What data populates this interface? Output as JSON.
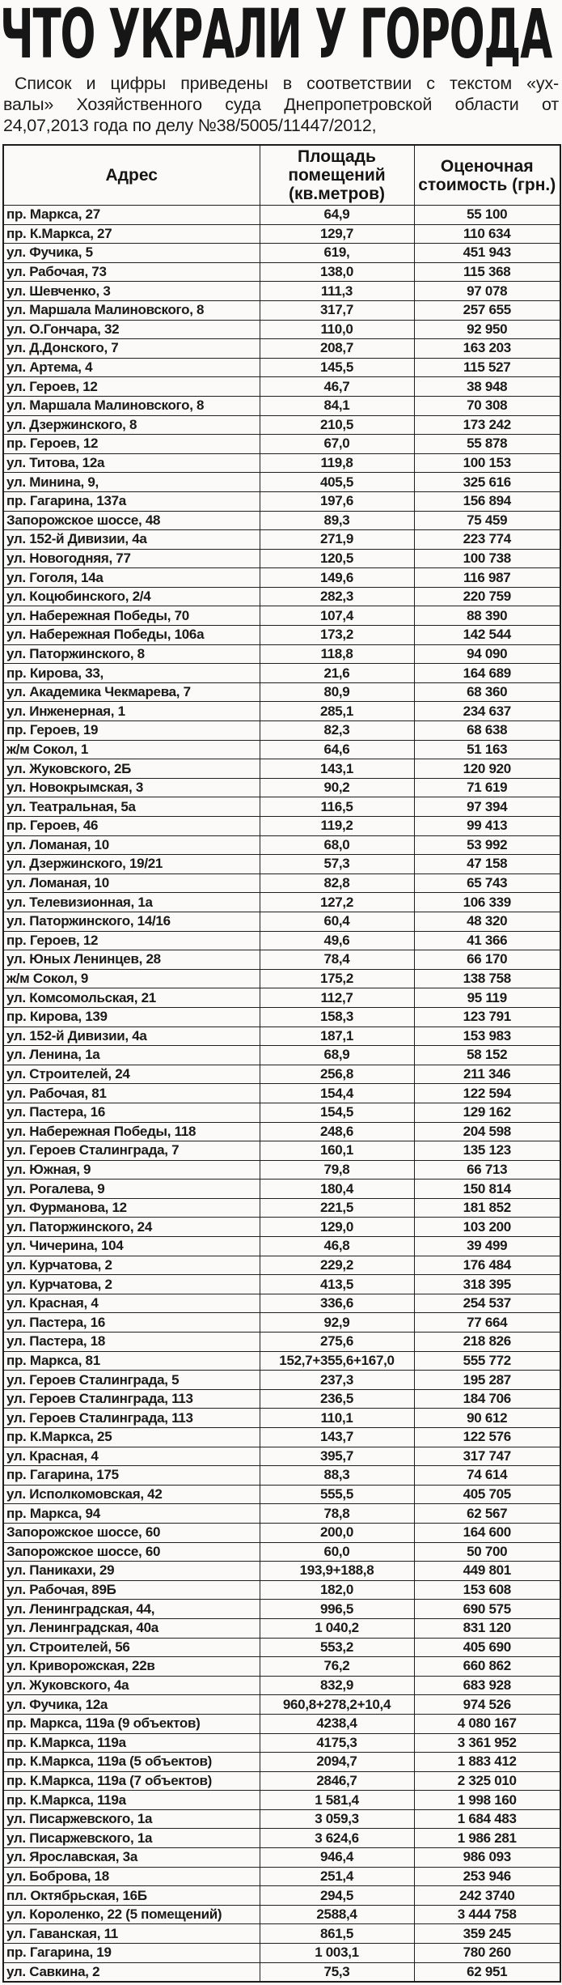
{
  "title": "ЧТО УКРАЛИ У ГОРОДА",
  "subtitle": {
    "lines": [
      "Список и цифры приведены в соответствии с текстом «ух-",
      "валы» Хозяйственного суда Днепропетровской области от",
      "24,07,2013 года по делу №38/5005/11447/2012,"
    ]
  },
  "table": {
    "columns": {
      "address": "Адрес",
      "area": "Площадь помещений (кв.метров)",
      "value": "Оценочная стоимость (грн.)"
    },
    "rows": [
      [
        "пр. Маркса, 27",
        "64,9",
        "55 100"
      ],
      [
        "пр. К.Маркса, 27",
        "129,7",
        "110 634"
      ],
      [
        "ул. Фучика, 5",
        "619,",
        "451 943"
      ],
      [
        "ул. Рабочая, 73",
        "138,0",
        "115 368"
      ],
      [
        "ул. Шевченко, 3",
        "111,3",
        "97 078"
      ],
      [
        "ул. Маршала Малиновского, 8",
        "317,7",
        "257 655"
      ],
      [
        "ул. О.Гончара, 32",
        "110,0",
        "92 950"
      ],
      [
        "ул. Д.Донского, 7",
        "208,7",
        "163 203"
      ],
      [
        "ул. Артема, 4",
        "145,5",
        "115 527"
      ],
      [
        "ул. Героев, 12",
        "46,7",
        "38 948"
      ],
      [
        "ул. Маршала Малиновского, 8",
        "84,1",
        "70 308"
      ],
      [
        "ул. Дзержинского, 8",
        "210,5",
        "173 242"
      ],
      [
        "пр. Героев, 12",
        "67,0",
        "55 878"
      ],
      [
        "ул. Титова, 12а",
        "119,8",
        "100 153"
      ],
      [
        "ул. Минина, 9,",
        "405,5",
        "325 616"
      ],
      [
        "пр. Гагарина, 137а",
        "197,6",
        "156 894"
      ],
      [
        "Запорожское шоссе, 48",
        "89,3",
        "75 459"
      ],
      [
        "ул. 152-й Дивизии, 4а",
        "271,9",
        "223 774"
      ],
      [
        "ул. Новогодняя, 77",
        "120,5",
        "100 738"
      ],
      [
        "ул. Гоголя, 14а",
        "149,6",
        "116 987"
      ],
      [
        "ул. Коцюбинского, 2/4",
        "282,3",
        "220 759"
      ],
      [
        "ул. Набережная Победы, 70",
        "107,4",
        "88 390"
      ],
      [
        "ул. Набережная Победы, 106а",
        "173,2",
        "142 544"
      ],
      [
        "ул. Паторжинского, 8",
        "118,8",
        "94 090"
      ],
      [
        "пр. Кирова, 33,",
        "21,6",
        "164 689"
      ],
      [
        "ул. Академика Чекмарева, 7",
        "80,9",
        "68 360"
      ],
      [
        "ул. Инженерная, 1",
        "285,1",
        "234 637"
      ],
      [
        "пр. Героев, 19",
        "82,3",
        "68 638"
      ],
      [
        "ж/м Сокол, 1",
        "64,6",
        "51 163"
      ],
      [
        "ул. Жуковского, 2Б",
        "143,1",
        "120 920"
      ],
      [
        "ул. Новокрымская, 3",
        "90,2",
        "71 619"
      ],
      [
        "ул. Театральная, 5а",
        "116,5",
        "97 394"
      ],
      [
        "пр. Героев, 46",
        "119,2",
        "99 413"
      ],
      [
        "ул. Ломаная, 10",
        "68,0",
        "53 992"
      ],
      [
        "ул. Дзержинского, 19/21",
        "57,3",
        "47 158"
      ],
      [
        "ул. Ломаная, 10",
        "82,8",
        "65 743"
      ],
      [
        "ул. Телевизионная, 1а",
        "127,2",
        "106 339"
      ],
      [
        "ул. Паторжинского, 14/16",
        "60,4",
        "48 320"
      ],
      [
        "пр. Героев, 12",
        "49,6",
        "41 366"
      ],
      [
        "ул. Юных Ленинцев, 28",
        "78,4",
        "66 170"
      ],
      [
        "ж/м Сокол, 9",
        "175,2",
        "138 758"
      ],
      [
        "ул. Комсомольская, 21",
        "112,7",
        "95 119"
      ],
      [
        "пр. Кирова, 139",
        "158,3",
        "123 791"
      ],
      [
        "ул. 152-й Дивизии, 4а",
        "187,1",
        "153 983"
      ],
      [
        "ул. Ленина, 1а",
        "68,9",
        "58 152"
      ],
      [
        "ул. Строителей, 24",
        "256,8",
        "211 346"
      ],
      [
        "ул. Рабочая, 81",
        "154,4",
        "122 594"
      ],
      [
        "ул. Пастера, 16",
        "154,5",
        "129 162"
      ],
      [
        "ул. Набережная Победы, 118",
        "248,6",
        "204 598"
      ],
      [
        "ул. Героев Сталинграда, 7",
        "160,1",
        "135 123"
      ],
      [
        "ул. Южная, 9",
        "79,8",
        "66 713"
      ],
      [
        "ул. Рогалева, 9",
        "180,4",
        "150 814"
      ],
      [
        "ул. Фурманова, 12",
        "221,5",
        "181 852"
      ],
      [
        "ул. Паторжинского, 24",
        "129,0",
        "103 200"
      ],
      [
        "ул. Чичерина, 104",
        "46,8",
        "39 499"
      ],
      [
        "ул. Курчатова, 2",
        "229,2",
        "176 484"
      ],
      [
        "ул. Курчатова, 2",
        "413,5",
        "318 395"
      ],
      [
        "ул. Красная, 4",
        "336,6",
        "254 537"
      ],
      [
        "ул. Пастера, 16",
        "92,9",
        "77 664"
      ],
      [
        "ул. Пастера, 18",
        "275,6",
        "218 826"
      ],
      [
        "пр. Маркса, 81",
        "152,7+355,6+167,0",
        "555 772"
      ],
      [
        "ул. Героев Сталинграда, 5",
        "237,3",
        "195 287"
      ],
      [
        "ул. Героев Сталинграда, 113",
        "236,5",
        "184 706"
      ],
      [
        "ул. Героев Сталинграда, 113",
        "110,1",
        "90 612"
      ],
      [
        "пр. К.Маркса, 25",
        "143,7",
        "122 576"
      ],
      [
        "ул. Красная, 4",
        "395,7",
        "317 747"
      ],
      [
        "пр. Гагарина, 175",
        "88,3",
        "74 614"
      ],
      [
        "ул. Исполкомовская, 42",
        "555,5",
        "405 705"
      ],
      [
        "пр. Маркса, 94",
        "78,8",
        "62 567"
      ],
      [
        "Запорожское шоссе, 60",
        "200,0",
        "164 600"
      ],
      [
        "Запорожское шоссе, 60",
        "60,0",
        "50 700"
      ],
      [
        "ул. Паникахи, 29",
        "193,9+188,8",
        "449 801"
      ],
      [
        "ул. Рабочая, 89Б",
        "182,0",
        "153 608"
      ],
      [
        "ул. Ленинградская, 44,",
        "996,5",
        "690 575"
      ],
      [
        "ул. Ленинградская, 40а",
        "1 040,2",
        "831 120"
      ],
      [
        "ул. Строителей, 56",
        "553,2",
        "405 690"
      ],
      [
        "ул. Криворожская, 22в",
        "76,2",
        "660 862"
      ],
      [
        "ул. Жуковского, 4а",
        "832,9",
        "683 928"
      ],
      [
        "ул. Фучика, 12а",
        "960,8+278,2+10,4",
        "974 526"
      ],
      [
        "пр. Маркса, 119а (9 объектов)",
        "4238,4",
        "4 080 167"
      ],
      [
        "пр. К.Маркса, 119а",
        "4175,3",
        "3 361 952"
      ],
      [
        "пр. К.Маркса, 119а (5 объектов)",
        "2094,7",
        "1 883 412"
      ],
      [
        "пр. К.Маркса, 119а (7 объектов)",
        "2846,7",
        "2 325 010"
      ],
      [
        "пр. К.Маркса, 119а",
        "1 581,4",
        "1 998 160"
      ],
      [
        "ул. Писаржевского, 1а",
        "3 059,3",
        "1 684 483"
      ],
      [
        "ул. Писаржевского, 1а",
        "3 624,6",
        "1 986 281"
      ],
      [
        "ул. Ярославская, 3а",
        "946,4",
        "986 093"
      ],
      [
        "ул. Боброва, 18",
        "251,4",
        "253 946"
      ],
      [
        "пл. Октябрьская, 16Б",
        "294,5",
        "242 3740"
      ],
      [
        "ул. Короленко, 22 (5 помещений)",
        "2588,4",
        "3 444 758"
      ],
      [
        "ул. Гаванская, 11",
        "861,5",
        "359 245"
      ],
      [
        "пр. Гагарина, 19",
        "1 003,1",
        "780 260"
      ],
      [
        "ул. Савкина, 2",
        "75,3",
        "62 951"
      ]
    ]
  },
  "colors": {
    "text": "#141414",
    "background": "#fbfaf8",
    "border": "#1f1f1f"
  }
}
